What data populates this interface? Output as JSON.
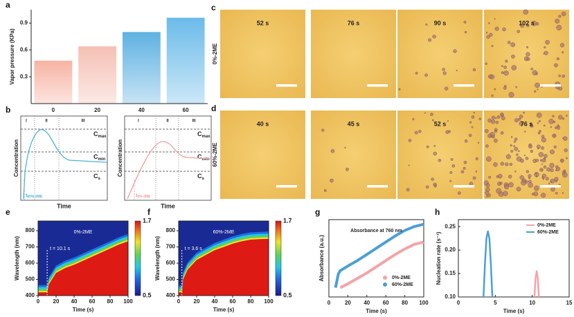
{
  "chart_data": [
    {
      "type": "bar",
      "panel": "a",
      "ylabel": "Vapor pressure (KPa)",
      "categories": [
        "0",
        "20",
        "40",
        "60"
      ],
      "values": [
        0.48,
        0.64,
        0.8,
        0.96
      ],
      "colors": [
        "#f7b3a3",
        "#f5c0b4",
        "#5fb1e2",
        "#6bbbe9"
      ],
      "ylim": [
        0,
        1.05
      ],
      "yticks": [
        0.3,
        0.6,
        0.9
      ]
    },
    {
      "type": "heatmap",
      "panel": "e",
      "annotation": "0%-2ME",
      "marker": {
        "value": 10.1,
        "label": "t = 10.1 s"
      },
      "xlabel": "Time (s)",
      "ylabel": "Wavelength (nm)",
      "x": [
        0,
        10.1,
        12,
        20,
        30,
        40,
        50,
        60,
        70,
        80,
        90,
        100
      ],
      "values": [
        420,
        420,
        470,
        540,
        570,
        590,
        615,
        640,
        665,
        690,
        715,
        735
      ],
      "xlim": [
        0,
        100
      ],
      "ylim": [
        400,
        860
      ],
      "xticks": [
        0,
        20,
        40,
        60,
        80,
        100
      ],
      "yticks": [
        400,
        500,
        600,
        700,
        800
      ],
      "clim": [
        0.5,
        1.7
      ],
      "cticks": [
        1.7,
        0.5
      ]
    },
    {
      "type": "heatmap",
      "panel": "f",
      "annotation": "60%-2ME",
      "marker": {
        "value": 3.6,
        "label": "t = 3.6 s"
      },
      "xlabel": "Time (s)",
      "ylabel": "Wavelength (nm)",
      "x": [
        0,
        3.6,
        5,
        10,
        20,
        30,
        40,
        50,
        60,
        70,
        80,
        90,
        100
      ],
      "values": [
        420,
        420,
        500,
        560,
        620,
        650,
        680,
        700,
        720,
        735,
        745,
        748,
        750
      ],
      "xlim": [
        0,
        100
      ],
      "ylim": [
        400,
        860
      ],
      "xticks": [
        0,
        20,
        40,
        60,
        80,
        100
      ],
      "yticks": [
        400,
        500,
        600,
        700,
        800
      ],
      "clim": [
        0.5,
        1.7
      ],
      "cticks": [
        1.7,
        0.5
      ]
    },
    {
      "type": "line",
      "panel": "g",
      "annotation": "Absorbance at 760 nm",
      "xlabel": "Time (s)",
      "ylabel": "Absorbance (a.u.)",
      "x": [
        7,
        10,
        12,
        20,
        30,
        40,
        50,
        60,
        70,
        80,
        90,
        100
      ],
      "series": [
        {
          "name": "0%-2ME",
          "color": "#f4a3a8",
          "values": [
            null,
            null,
            0.12,
            0.17,
            0.24,
            0.31,
            0.39,
            0.47,
            0.55,
            0.62,
            0.68,
            0.71
          ]
        },
        {
          "name": "60%-2ME",
          "color": "#4b9fd6",
          "values": [
            0.12,
            0.3,
            0.34,
            0.4,
            0.47,
            0.55,
            0.63,
            0.71,
            0.79,
            0.86,
            0.91,
            0.94
          ]
        }
      ],
      "xlim": [
        0,
        100
      ],
      "ylim": [
        0,
        1
      ],
      "xticks": [
        0,
        20,
        40,
        60,
        80,
        100
      ],
      "legend": "lower right"
    },
    {
      "type": "line",
      "panel": "h",
      "xlabel": "Time (s)",
      "ylabel": "Nucleation rate (s⁻¹)",
      "series": [
        {
          "name": "0%-2ME",
          "color": "#f4a3a8",
          "x": [
            10.3,
            10.45,
            10.6,
            10.75,
            10.9
          ],
          "values": [
            0.1,
            0.14,
            0.155,
            0.14,
            0.1
          ]
        },
        {
          "name": "60%-2ME",
          "color": "#4b9fd6",
          "x": [
            3.4,
            3.6,
            3.8,
            4.0,
            4.2,
            4.4,
            4.6
          ],
          "values": [
            0.1,
            0.17,
            0.225,
            0.24,
            0.225,
            0.17,
            0.1
          ]
        }
      ],
      "xlim": [
        0,
        15
      ],
      "ylim": [
        0.1,
        0.265
      ],
      "xticks": [
        0,
        5,
        10,
        15
      ],
      "yticks": [
        {
          "value": 0.1,
          "label": "0.10"
        },
        0.15,
        {
          "value": 0.2,
          "label": "0.20"
        },
        0.25
      ],
      "legend": "upper right"
    }
  ],
  "schematic": {
    "panel": "b",
    "ylabel": "Concentration",
    "xlabel": "Time",
    "stages": [
      "I",
      "II",
      "III"
    ],
    "levels": [
      [
        "C",
        "max"
      ],
      [
        "C",
        "min"
      ],
      [
        "C",
        "s"
      ]
    ],
    "diagrams": [
      {
        "time_label": [
          "t",
          "60%-2ME"
        ],
        "color": "#4bb3d6"
      },
      {
        "time_label": [
          "t",
          "0%-2ME"
        ],
        "color": "#f29a9a"
      }
    ]
  },
  "micrographs": {
    "rows": [
      {
        "panel": "c",
        "label": "0%-2ME",
        "times": [
          "52 s",
          "76 s",
          "90 s",
          "102 s"
        ]
      },
      {
        "panel": "d",
        "label": "60%-2ME",
        "times": [
          "40 s",
          "45 s",
          "52 s",
          "76 s"
        ]
      }
    ]
  }
}
